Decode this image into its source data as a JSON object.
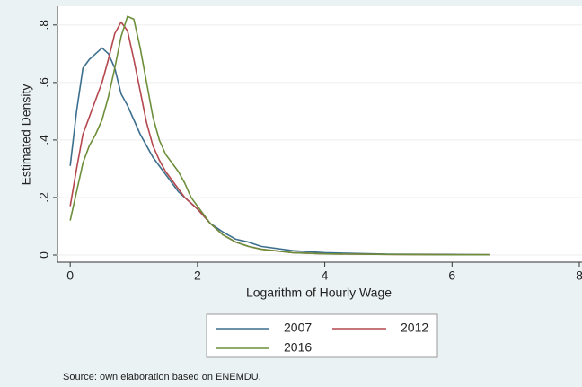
{
  "chart_data": {
    "type": "line",
    "ylabel": "Estimated Density",
    "xlabel": "Logarithm of Hourly Wage",
    "note": "Source: own elaboration based on ENEMDU.",
    "x": [
      0,
      0.1,
      0.2,
      0.3,
      0.4,
      0.5,
      0.6,
      0.7,
      0.8,
      0.9,
      1.0,
      1.1,
      1.2,
      1.3,
      1.4,
      1.5,
      1.6,
      1.7,
      1.8,
      1.9,
      2.0,
      2.2,
      2.4,
      2.6,
      2.8,
      3.0,
      3.5,
      4,
      5,
      6,
      6.6
    ],
    "series": [
      {
        "name": "2007",
        "color": "#3c6f8e",
        "values": [
          0.31,
          0.5,
          0.65,
          0.68,
          0.7,
          0.72,
          0.7,
          0.65,
          0.56,
          0.52,
          0.47,
          0.42,
          0.38,
          0.34,
          0.31,
          0.28,
          0.25,
          0.22,
          0.2,
          0.18,
          0.16,
          0.11,
          0.08,
          0.055,
          0.045,
          0.03,
          0.015,
          0.008,
          0.003,
          0.002,
          0.001
        ]
      },
      {
        "name": "2012",
        "color": "#b4484e",
        "values": [
          0.17,
          0.3,
          0.42,
          0.48,
          0.54,
          0.6,
          0.68,
          0.77,
          0.81,
          0.78,
          0.68,
          0.57,
          0.46,
          0.38,
          0.33,
          0.29,
          0.26,
          0.23,
          0.2,
          0.18,
          0.16,
          0.11,
          0.07,
          0.045,
          0.03,
          0.02,
          0.008,
          0.004,
          0.002,
          0.001,
          0.001
        ]
      },
      {
        "name": "2016",
        "color": "#6d8f3c",
        "values": [
          0.12,
          0.22,
          0.32,
          0.38,
          0.42,
          0.47,
          0.55,
          0.65,
          0.76,
          0.83,
          0.82,
          0.72,
          0.6,
          0.48,
          0.4,
          0.35,
          0.32,
          0.29,
          0.25,
          0.2,
          0.17,
          0.11,
          0.07,
          0.045,
          0.03,
          0.02,
          0.008,
          0.004,
          0.002,
          0.001,
          0.001
        ]
      }
    ],
    "xlim": [
      -0.2,
      8
    ],
    "ylim": [
      -0.025,
      0.865
    ],
    "xticks": [
      0,
      2,
      4,
      6,
      8
    ],
    "yticks": [
      0,
      {
        "value": 0.2,
        "label": ".2"
      },
      {
        "value": 0.4,
        "label": ".4"
      },
      {
        "value": 0.6,
        "label": ".6"
      },
      {
        "value": 0.8,
        "label": ".8"
      }
    ],
    "grid": true
  }
}
